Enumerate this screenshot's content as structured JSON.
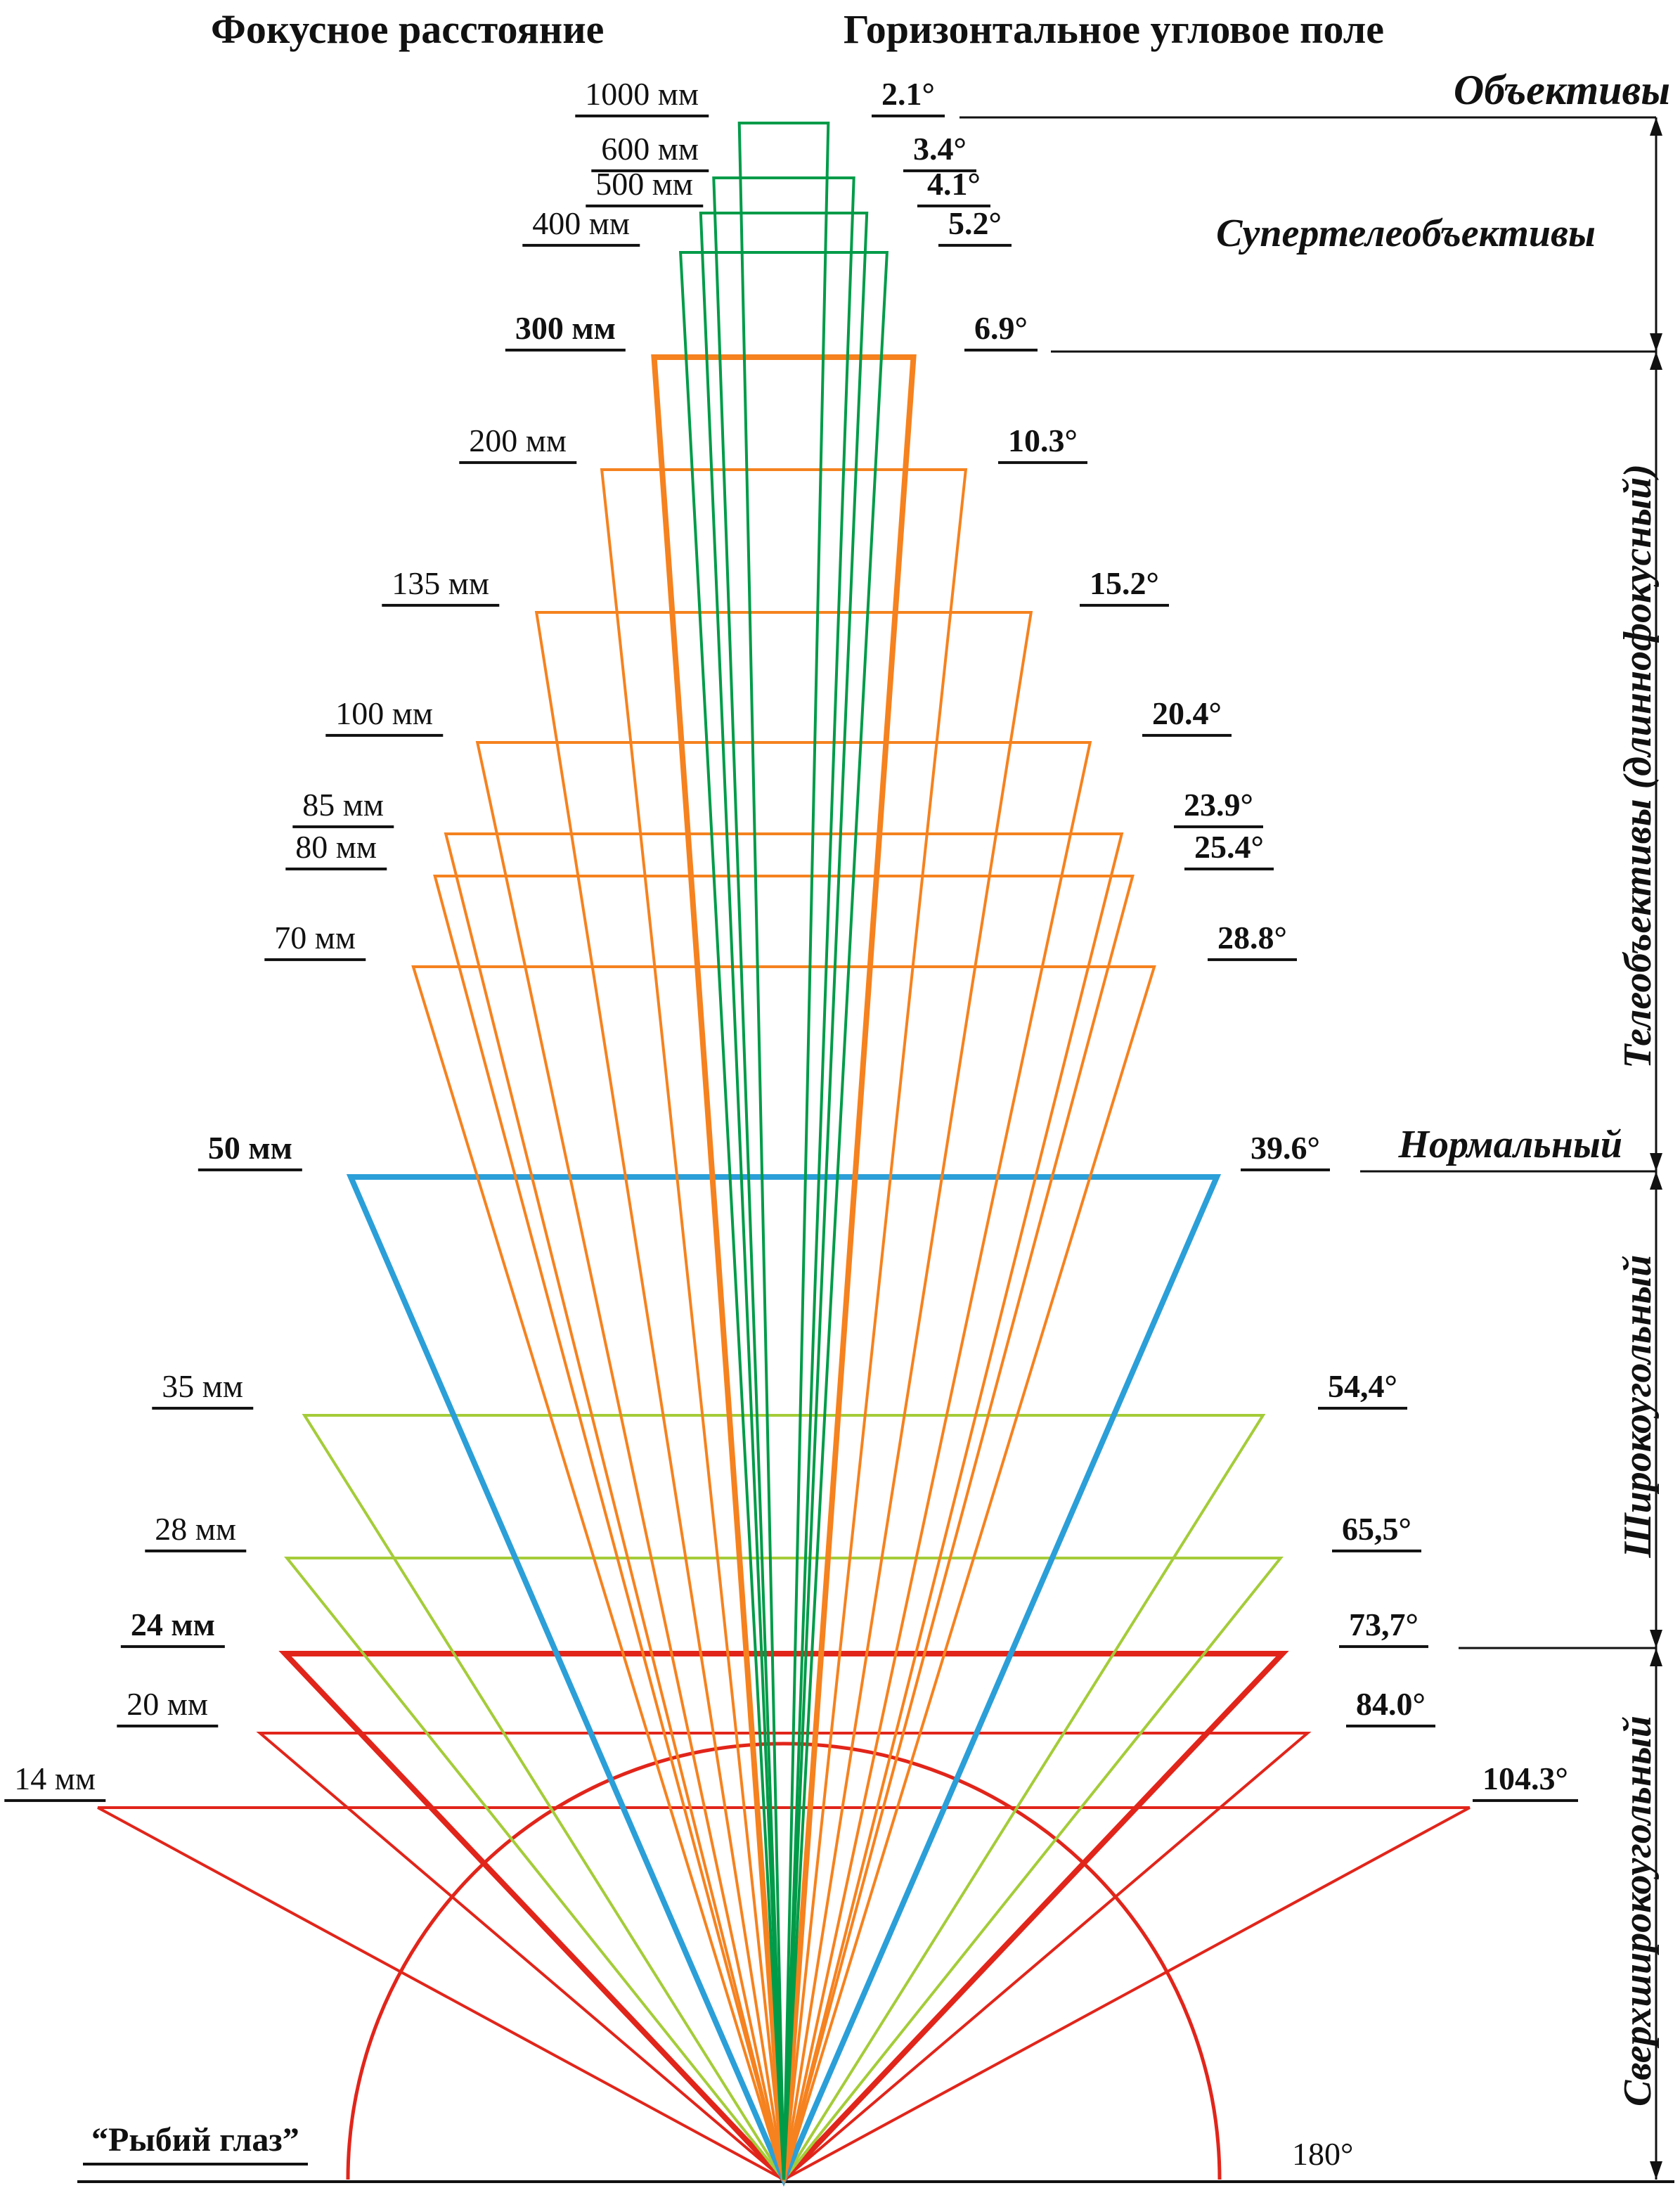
{
  "headers": {
    "left": "Фокусное расстояние",
    "right": "Горизонтальное угловое поле"
  },
  "categories": {
    "lenses_title": "Объективы",
    "supertele": "Супертелеобъективы",
    "tele": "Телеобъективы (длиннофокусный)",
    "normal": "Нормальный",
    "wide": "Широкоугольный",
    "ultrawide": "Сверхширокоугольный"
  },
  "chart_data": {
    "type": "diagram",
    "subtype": "lens-focal-length-vs-horizontal-angle-of-view",
    "colors": {
      "supertelephoto": "#009B48",
      "telephoto": "#F5821F",
      "normal": "#2B9FD8",
      "wide": "#A4CC39",
      "ultrawide": "#E1251B",
      "lines": "#111111"
    },
    "lenses": [
      {
        "focal": "1000 мм",
        "angle": "2.1°",
        "angle_deg": 2.1,
        "group": "supertelephoto",
        "bold": false
      },
      {
        "focal": "600 мм",
        "angle": "3.4°",
        "angle_deg": 3.4,
        "group": "supertelephoto",
        "bold": false
      },
      {
        "focal": "500 мм",
        "angle": "4.1°",
        "angle_deg": 4.1,
        "group": "supertelephoto",
        "bold": false
      },
      {
        "focal": "400 мм",
        "angle": "5.2°",
        "angle_deg": 5.2,
        "group": "supertelephoto",
        "bold": false
      },
      {
        "focal": "300 мм",
        "angle": "6.9°",
        "angle_deg": 6.9,
        "group": "telephoto",
        "bold": true
      },
      {
        "focal": "200 мм",
        "angle": "10.3°",
        "angle_deg": 10.3,
        "group": "telephoto",
        "bold": false
      },
      {
        "focal": "135 мм",
        "angle": "15.2°",
        "angle_deg": 15.2,
        "group": "telephoto",
        "bold": false
      },
      {
        "focal": "100 мм",
        "angle": "20.4°",
        "angle_deg": 20.4,
        "group": "telephoto",
        "bold": false
      },
      {
        "focal": "85 мм",
        "angle": "23.9°",
        "angle_deg": 23.9,
        "group": "telephoto",
        "bold": false
      },
      {
        "focal": "80 мм",
        "angle": "25.4°",
        "angle_deg": 25.4,
        "group": "telephoto",
        "bold": false
      },
      {
        "focal": "70 мм",
        "angle": "28.8°",
        "angle_deg": 28.8,
        "group": "telephoto",
        "bold": false
      },
      {
        "focal": "50 мм",
        "angle": "39.6°",
        "angle_deg": 39.6,
        "group": "normal",
        "bold": true
      },
      {
        "focal": "35 мм",
        "angle": "54,4°",
        "angle_deg": 54.4,
        "group": "wide",
        "bold": false
      },
      {
        "focal": "28 мм",
        "angle": "65,5°",
        "angle_deg": 65.5,
        "group": "wide",
        "bold": false
      },
      {
        "focal": "24 мм",
        "angle": "73,7°",
        "angle_deg": 73.7,
        "group": "ultrawide",
        "bold": true
      },
      {
        "focal": "20 мм",
        "angle": "84.0°",
        "angle_deg": 84.0,
        "group": "ultrawide",
        "bold": false
      },
      {
        "focal": "14 мм",
        "angle": "104.3°",
        "angle_deg": 104.3,
        "group": "ultrawide",
        "bold": false
      }
    ],
    "fisheye": {
      "label": "“Рыбий глаз”",
      "angle": "180°"
    }
  }
}
